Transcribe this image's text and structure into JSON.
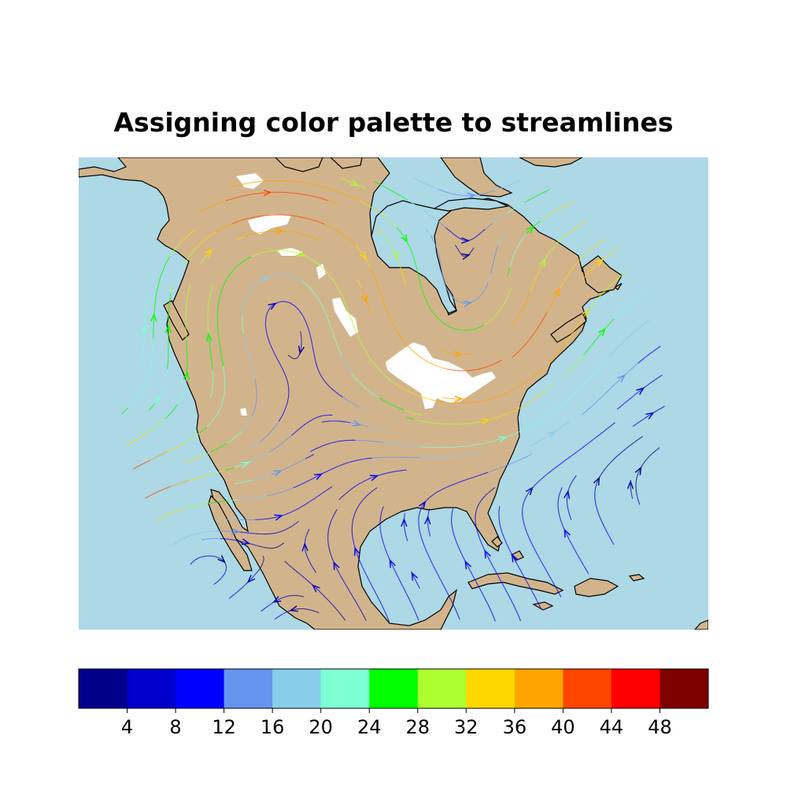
{
  "title": "Assigning color palette to streamlines",
  "map": {
    "ocean_color": "#add8e6",
    "land_color": "#d2b48c",
    "lake_color": "#ffffff",
    "coast_color": "#000000"
  },
  "colorbar": {
    "colors": [
      "#00008b",
      "#0000cd",
      "#0000ff",
      "#6495ed",
      "#87ceeb",
      "#7fffd4",
      "#00ff00",
      "#adff2f",
      "#ffd700",
      "#ffa500",
      "#ff4500",
      "#ff0000",
      "#800000"
    ],
    "ticks": [
      "4",
      "8",
      "12",
      "16",
      "20",
      "24",
      "28",
      "32",
      "36",
      "40",
      "44",
      "48"
    ]
  },
  "chart_data": {
    "type": "streamline",
    "title": "Assigning color palette to streamlines",
    "colormap_levels": [
      0,
      4,
      8,
      12,
      16,
      20,
      24,
      28,
      32,
      36,
      40,
      44,
      48,
      52
    ],
    "colorbar_ticks": [
      4,
      8,
      12,
      16,
      20,
      24,
      28,
      32,
      36,
      40,
      44,
      48
    ]
  }
}
